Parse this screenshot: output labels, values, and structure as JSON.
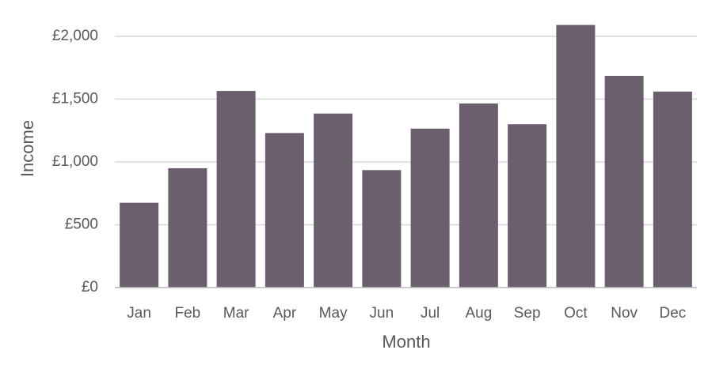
{
  "chart_data": {
    "type": "bar",
    "x_label": "Month",
    "y_label": "Income",
    "categories": [
      "Jan",
      "Feb",
      "Mar",
      "Apr",
      "May",
      "Jun",
      "Jul",
      "Aug",
      "Sep",
      "Oct",
      "Nov",
      "Dec"
    ],
    "values": [
      675,
      950,
      1565,
      1230,
      1385,
      935,
      1265,
      1465,
      1300,
      2090,
      1685,
      1560
    ],
    "color": "#6b5f6e",
    "ylim": [
      0,
      2100
    ],
    "yticks": [
      {
        "value": 0,
        "label": "£0"
      },
      {
        "value": 500,
        "label": "£500"
      },
      {
        "value": 1000,
        "label": "£1,000"
      },
      {
        "value": 1500,
        "label": "£1,500"
      },
      {
        "value": 2000,
        "label": "£2,000"
      }
    ],
    "grid": true
  }
}
